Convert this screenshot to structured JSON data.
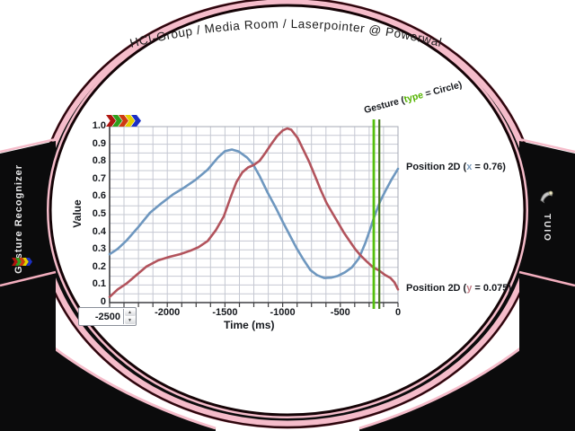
{
  "window": {
    "title": "HCI-Group / Media Room / Laserpointer @ Powerwall"
  },
  "left_panel": {
    "label": "Gesture Recognizer"
  },
  "right_panel": {
    "label": "TUIO"
  },
  "icons": {
    "chevron_colors": [
      "#b01510",
      "#2f9e1c",
      "#cf3a10",
      "#e3cf00",
      "#1b2fc4"
    ],
    "spinner_up": "▲",
    "spinner_down": "▼"
  },
  "controls": {
    "time_window_value": "-2500"
  },
  "labels": {
    "gesture_prefix": "Gesture (",
    "gesture_key": "type",
    "gesture_suffix": " = Circle)",
    "pos_x_prefix": "Position 2D (",
    "pos_x_key": "x",
    "pos_x_suffix": " = 0.76)",
    "pos_y_prefix": "Position 2D (",
    "pos_y_key": "y",
    "pos_y_suffix": " = 0.075)"
  },
  "chart_data": {
    "type": "line",
    "xlabel": "Time (ms)",
    "ylabel": "Value",
    "xlim": [
      -2500,
      0
    ],
    "ylim": [
      0,
      1
    ],
    "grid": {
      "on": true,
      "x_step": 125,
      "y_step": 0.05
    },
    "x_axis_ticks": [
      {
        "v": -2000,
        "label": "-2000"
      },
      {
        "v": -1500,
        "label": "-1500"
      },
      {
        "v": -1000,
        "label": "-1000"
      },
      {
        "v": -500,
        "label": "-500"
      },
      {
        "v": 0,
        "label": "0"
      }
    ],
    "y_axis_ticks": [
      {
        "v": 1.0,
        "label": "1.0"
      },
      {
        "v": 0.9,
        "label": "0.9"
      },
      {
        "v": 0.8,
        "label": "0.8"
      },
      {
        "v": 0.7,
        "label": "0.7"
      },
      {
        "v": 0.6,
        "label": "0.6"
      },
      {
        "v": 0.5,
        "label": "0.5"
      },
      {
        "v": 0.4,
        "label": "0.4"
      },
      {
        "v": 0.3,
        "label": "0.3"
      },
      {
        "v": 0.2,
        "label": "0.2"
      },
      {
        "v": 0.1,
        "label": "0.1"
      },
      {
        "v": 0.0,
        "label": "0"
      }
    ],
    "series": [
      {
        "name": "Position 2D x",
        "color": "#6e97bf",
        "points": [
          [
            -2500,
            0.275
          ],
          [
            -2430,
            0.305
          ],
          [
            -2350,
            0.355
          ],
          [
            -2250,
            0.43
          ],
          [
            -2150,
            0.51
          ],
          [
            -2050,
            0.565
          ],
          [
            -1950,
            0.615
          ],
          [
            -1850,
            0.655
          ],
          [
            -1750,
            0.7
          ],
          [
            -1650,
            0.755
          ],
          [
            -1560,
            0.825
          ],
          [
            -1500,
            0.86
          ],
          [
            -1440,
            0.87
          ],
          [
            -1380,
            0.858
          ],
          [
            -1310,
            0.825
          ],
          [
            -1260,
            0.79
          ],
          [
            -1200,
            0.72
          ],
          [
            -1130,
            0.625
          ],
          [
            -1060,
            0.54
          ],
          [
            -1000,
            0.46
          ],
          [
            -940,
            0.385
          ],
          [
            -880,
            0.31
          ],
          [
            -820,
            0.245
          ],
          [
            -760,
            0.185
          ],
          [
            -700,
            0.155
          ],
          [
            -640,
            0.14
          ],
          [
            -580,
            0.142
          ],
          [
            -520,
            0.152
          ],
          [
            -460,
            0.172
          ],
          [
            -400,
            0.2
          ],
          [
            -340,
            0.25
          ],
          [
            -285,
            0.335
          ],
          [
            -240,
            0.42
          ],
          [
            -205,
            0.49
          ],
          [
            -155,
            0.575
          ],
          [
            -105,
            0.64
          ],
          [
            -55,
            0.7
          ],
          [
            0,
            0.76
          ]
        ]
      },
      {
        "name": "Position 2D y",
        "color": "#b2535c",
        "points": [
          [
            -2500,
            0.032
          ],
          [
            -2430,
            0.075
          ],
          [
            -2350,
            0.11
          ],
          [
            -2270,
            0.155
          ],
          [
            -2180,
            0.205
          ],
          [
            -2080,
            0.24
          ],
          [
            -1980,
            0.26
          ],
          [
            -1890,
            0.275
          ],
          [
            -1800,
            0.295
          ],
          [
            -1730,
            0.315
          ],
          [
            -1650,
            0.35
          ],
          [
            -1580,
            0.41
          ],
          [
            -1510,
            0.49
          ],
          [
            -1450,
            0.6
          ],
          [
            -1400,
            0.685
          ],
          [
            -1350,
            0.74
          ],
          [
            -1300,
            0.768
          ],
          [
            -1250,
            0.782
          ],
          [
            -1200,
            0.805
          ],
          [
            -1150,
            0.85
          ],
          [
            -1100,
            0.9
          ],
          [
            -1050,
            0.945
          ],
          [
            -1000,
            0.978
          ],
          [
            -960,
            0.99
          ],
          [
            -925,
            0.982
          ],
          [
            -870,
            0.935
          ],
          [
            -820,
            0.868
          ],
          [
            -770,
            0.8
          ],
          [
            -720,
            0.72
          ],
          [
            -670,
            0.64
          ],
          [
            -620,
            0.567
          ],
          [
            -570,
            0.51
          ],
          [
            -520,
            0.455
          ],
          [
            -470,
            0.398
          ],
          [
            -420,
            0.35
          ],
          [
            -370,
            0.303
          ],
          [
            -320,
            0.265
          ],
          [
            -270,
            0.233
          ],
          [
            -215,
            0.2
          ],
          [
            -165,
            0.183
          ],
          [
            -115,
            0.158
          ],
          [
            -65,
            0.14
          ],
          [
            -30,
            0.115
          ],
          [
            0,
            0.075
          ]
        ]
      }
    ],
    "markers": [
      {
        "type": "vline",
        "x": -210,
        "color": "#54bf0d",
        "width": 2.8
      },
      {
        "type": "vline",
        "x": -162,
        "color": "#47781f",
        "width": 2.2
      }
    ]
  },
  "colors": {
    "frame_black": "#0b0b0c",
    "frame_pink": "#f5bcca",
    "frame_maroon": "#2d060d",
    "grid": "#c5c8d2",
    "plot_border": "#a5aab4",
    "axis": "#3f3f42"
  }
}
